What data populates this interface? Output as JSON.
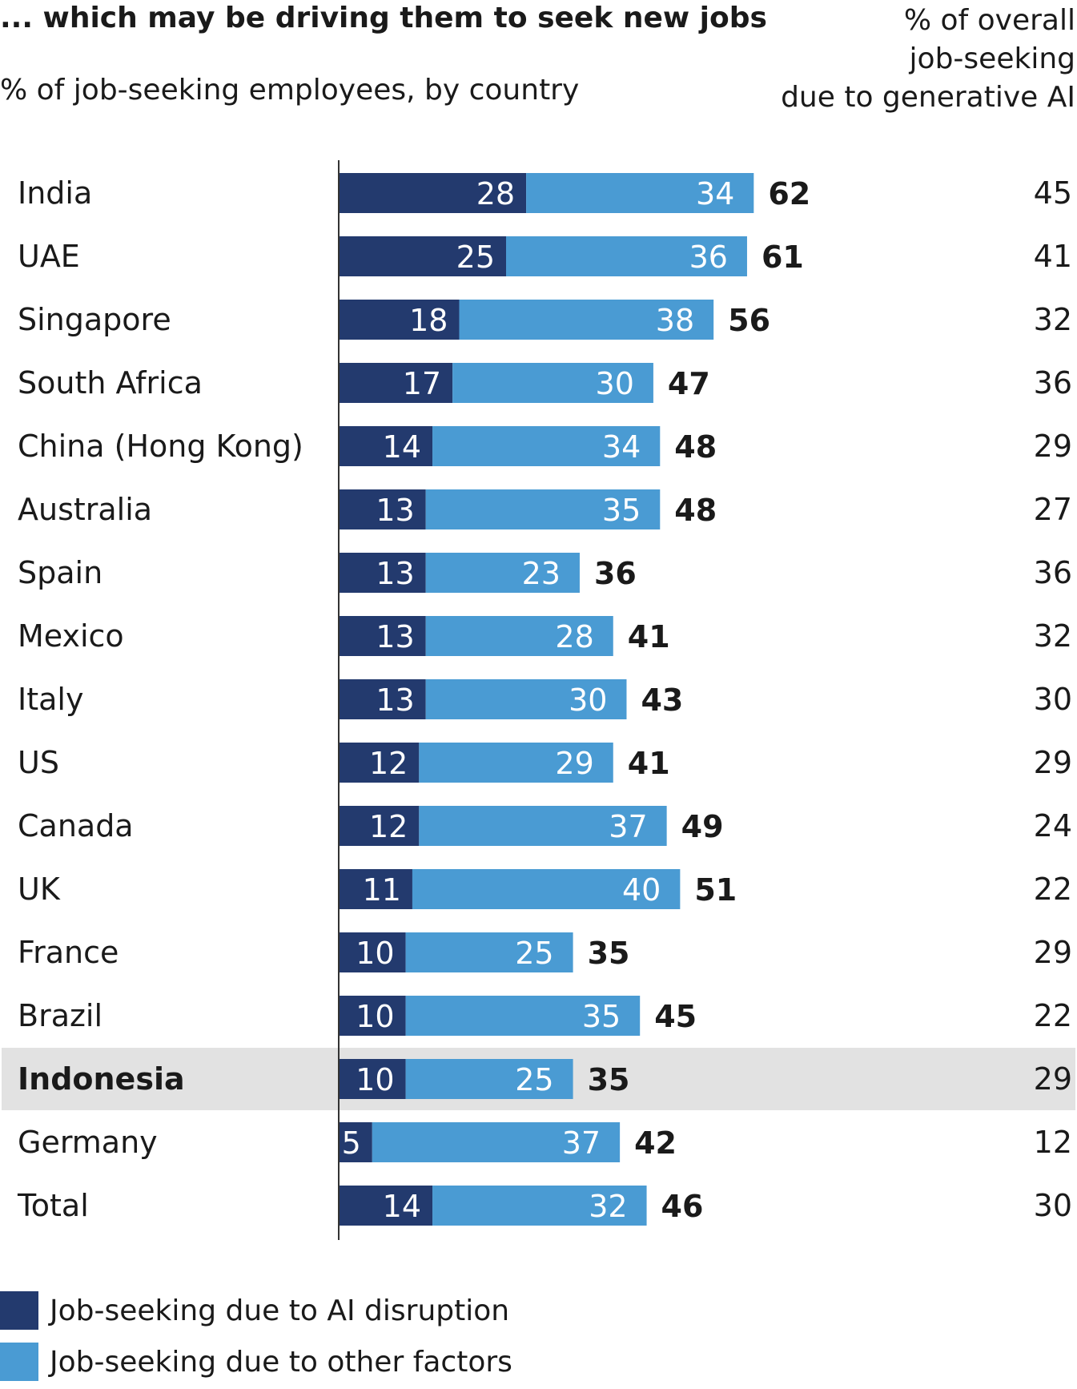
{
  "chart_data": {
    "type": "bar",
    "stacked": true,
    "orientation": "horizontal",
    "title": "... which may be driving them to seek new jobs",
    "subtitle": "% of job-seeking employees, by country",
    "right_column_header": [
      "% of overall",
      "job-seeking",
      "due to generative AI"
    ],
    "highlight_category": "Indonesia",
    "categories": [
      "India",
      "UAE",
      "Singapore",
      "South Africa",
      "China (Hong Kong)",
      "Australia",
      "Spain",
      "Mexico",
      "Italy",
      "US",
      "Canada",
      "UK",
      "France",
      "Brazil",
      "Indonesia",
      "Germany",
      "Total"
    ],
    "series": [
      {
        "name": "Job-seeking due to AI disruption",
        "color": "#233a6e",
        "values": [
          28,
          25,
          18,
          17,
          14,
          13,
          13,
          13,
          13,
          12,
          12,
          11,
          10,
          10,
          10,
          5,
          14
        ]
      },
      {
        "name": "Job-seeking due to other factors",
        "color": "#4a9bd3",
        "values": [
          34,
          36,
          38,
          30,
          34,
          35,
          23,
          28,
          30,
          29,
          37,
          40,
          25,
          35,
          25,
          37,
          32
        ]
      }
    ],
    "totals": [
      62,
      61,
      56,
      47,
      48,
      48,
      36,
      41,
      43,
      41,
      49,
      51,
      35,
      45,
      35,
      42,
      46
    ],
    "share_due_to_generative_ai": [
      45,
      41,
      32,
      36,
      29,
      27,
      36,
      32,
      30,
      29,
      24,
      22,
      29,
      22,
      29,
      12,
      30
    ],
    "xlim": [
      0,
      100
    ]
  }
}
